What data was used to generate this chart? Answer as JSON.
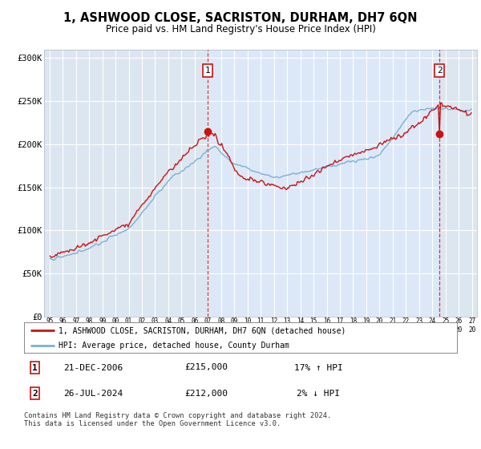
{
  "title": "1, ASHWOOD CLOSE, SACRISTON, DURHAM, DH7 6QN",
  "subtitle": "Price paid vs. HM Land Registry's House Price Index (HPI)",
  "legend_line1": "1, ASHWOOD CLOSE, SACRISTON, DURHAM, DH7 6QN (detached house)",
  "legend_line2": "HPI: Average price, detached house, County Durham",
  "transaction1_date": "21-DEC-2006",
  "transaction1_price": "£215,000",
  "transaction1_hpi": "17% ↑ HPI",
  "transaction2_date": "26-JUL-2024",
  "transaction2_price": "£212,000",
  "transaction2_hpi": "2% ↓ HPI",
  "footer": "Contains HM Land Registry data © Crown copyright and database right 2024.\nThis data is licensed under the Open Government Licence v3.0.",
  "ylim": [
    0,
    310000
  ],
  "yticks": [
    0,
    50000,
    100000,
    150000,
    200000,
    250000,
    300000
  ],
  "hpi_color": "#7ab0d8",
  "price_color": "#cc1111",
  "bg_color_left": "#dce6f0",
  "bg_color_mid": "#dce8f8",
  "hatch_color": "#c8d4e4",
  "vline_color": "#cc1111",
  "box_edge_color": "#cc1111",
  "grid_color": "#c8d4e4",
  "white_grid": "#ffffff",
  "t1_year": 2006,
  "t1_month": 12,
  "t2_year": 2024,
  "t2_month": 7,
  "t1_price": 215000,
  "t2_price": 212000
}
